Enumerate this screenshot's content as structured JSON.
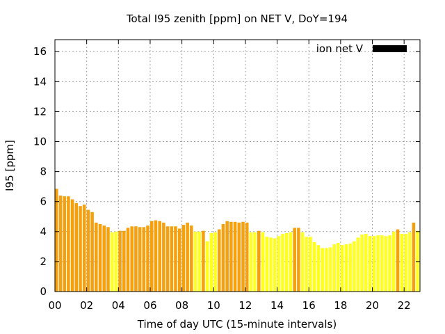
{
  "chart_data": {
    "type": "bar",
    "title": "Total I95 zenith [ppm] on NET V, DoY=194",
    "xlabel": "Time of day UTC (15-minute intervals)",
    "ylabel": "I95 [ppm]",
    "xlim": [
      0,
      23
    ],
    "ylim": [
      0,
      16.8
    ],
    "x_ticks": [
      "00",
      "02",
      "04",
      "06",
      "08",
      "10",
      "12",
      "14",
      "16",
      "18",
      "20",
      "22"
    ],
    "x_tick_values": [
      0,
      2,
      4,
      6,
      8,
      10,
      12,
      14,
      16,
      18,
      20,
      22
    ],
    "y_ticks": [
      "0",
      "2",
      "4",
      "6",
      "8",
      "10",
      "12",
      "14",
      "16"
    ],
    "y_tick_values": [
      0,
      2,
      4,
      6,
      8,
      10,
      12,
      14,
      16
    ],
    "grid": true,
    "legend": {
      "label": "ion net V",
      "color": "#000000",
      "placement": "top-right"
    },
    "colors": {
      "orange": "#f5a00f",
      "yellow": "#ffff20"
    },
    "series": [
      {
        "x": [
          0.0,
          0.25,
          0.5,
          0.75,
          1.0,
          1.25,
          1.5,
          1.75,
          2.0,
          2.25,
          2.5,
          2.75,
          3.0,
          3.25,
          3.5,
          3.75,
          4.0,
          4.25,
          4.5,
          4.75,
          5.0,
          5.25,
          5.5,
          5.75,
          6.0,
          6.25,
          6.5,
          6.75,
          7.0,
          7.25,
          7.5,
          7.75,
          8.0,
          8.25,
          8.5,
          8.75,
          9.0,
          9.25,
          9.5,
          9.75,
          10.0,
          10.25,
          10.5,
          10.75,
          11.0,
          11.25,
          11.5,
          11.75,
          12.0,
          12.25,
          12.5,
          12.75,
          13.0,
          13.25,
          13.5,
          13.75,
          14.0,
          14.25,
          14.5,
          14.75,
          15.0,
          15.25,
          15.5,
          15.75,
          16.0,
          16.25,
          16.5,
          16.75,
          17.0,
          17.25,
          17.5,
          17.75,
          18.0,
          18.25,
          18.5,
          18.75,
          19.0,
          19.25,
          19.5,
          19.75,
          20.0,
          20.25,
          20.5,
          20.75,
          21.0,
          21.25,
          21.5,
          21.75,
          22.0,
          22.25,
          22.5,
          22.75
        ],
        "values": [
          6.85,
          6.4,
          6.35,
          6.35,
          6.15,
          5.9,
          5.7,
          5.8,
          5.45,
          5.3,
          4.6,
          4.5,
          4.4,
          4.3,
          3.95,
          4.0,
          4.05,
          4.05,
          4.25,
          4.35,
          4.35,
          4.3,
          4.3,
          4.4,
          4.7,
          4.75,
          4.7,
          4.6,
          4.35,
          4.35,
          4.35,
          4.2,
          4.45,
          4.6,
          4.4,
          4.0,
          4.0,
          4.05,
          3.35,
          3.9,
          3.95,
          4.15,
          4.5,
          4.7,
          4.65,
          4.65,
          4.6,
          4.65,
          4.6,
          3.95,
          3.95,
          4.05,
          3.95,
          3.65,
          3.6,
          3.55,
          3.7,
          3.85,
          3.9,
          3.95,
          4.25,
          4.25,
          3.95,
          3.65,
          3.65,
          3.3,
          3.1,
          2.9,
          2.9,
          2.95,
          3.15,
          3.25,
          3.1,
          3.15,
          3.2,
          3.35,
          3.6,
          3.8,
          3.85,
          3.7,
          3.7,
          3.75,
          3.75,
          3.7,
          3.75,
          4.0,
          4.15,
          3.85,
          3.85,
          3.95,
          4.6,
          4.05
        ],
        "colors": [
          "orange",
          "orange",
          "orange",
          "orange",
          "orange",
          "orange",
          "orange",
          "orange",
          "orange",
          "orange",
          "orange",
          "orange",
          "orange",
          "orange",
          "yellow",
          "yellow",
          "orange",
          "orange",
          "orange",
          "orange",
          "orange",
          "orange",
          "orange",
          "orange",
          "orange",
          "orange",
          "orange",
          "orange",
          "orange",
          "orange",
          "orange",
          "orange",
          "orange",
          "orange",
          "orange",
          "yellow",
          "yellow",
          "orange",
          "yellow",
          "yellow",
          "yellow",
          "orange",
          "orange",
          "orange",
          "orange",
          "orange",
          "orange",
          "orange",
          "orange",
          "yellow",
          "yellow",
          "orange",
          "yellow",
          "yellow",
          "yellow",
          "yellow",
          "yellow",
          "yellow",
          "yellow",
          "yellow",
          "orange",
          "orange",
          "yellow",
          "yellow",
          "yellow",
          "yellow",
          "yellow",
          "yellow",
          "yellow",
          "yellow",
          "yellow",
          "yellow",
          "yellow",
          "yellow",
          "yellow",
          "yellow",
          "yellow",
          "yellow",
          "yellow",
          "yellow",
          "yellow",
          "yellow",
          "yellow",
          "yellow",
          "yellow",
          "yellow",
          "orange",
          "yellow",
          "yellow",
          "yellow",
          "orange",
          "yellow"
        ]
      }
    ]
  }
}
